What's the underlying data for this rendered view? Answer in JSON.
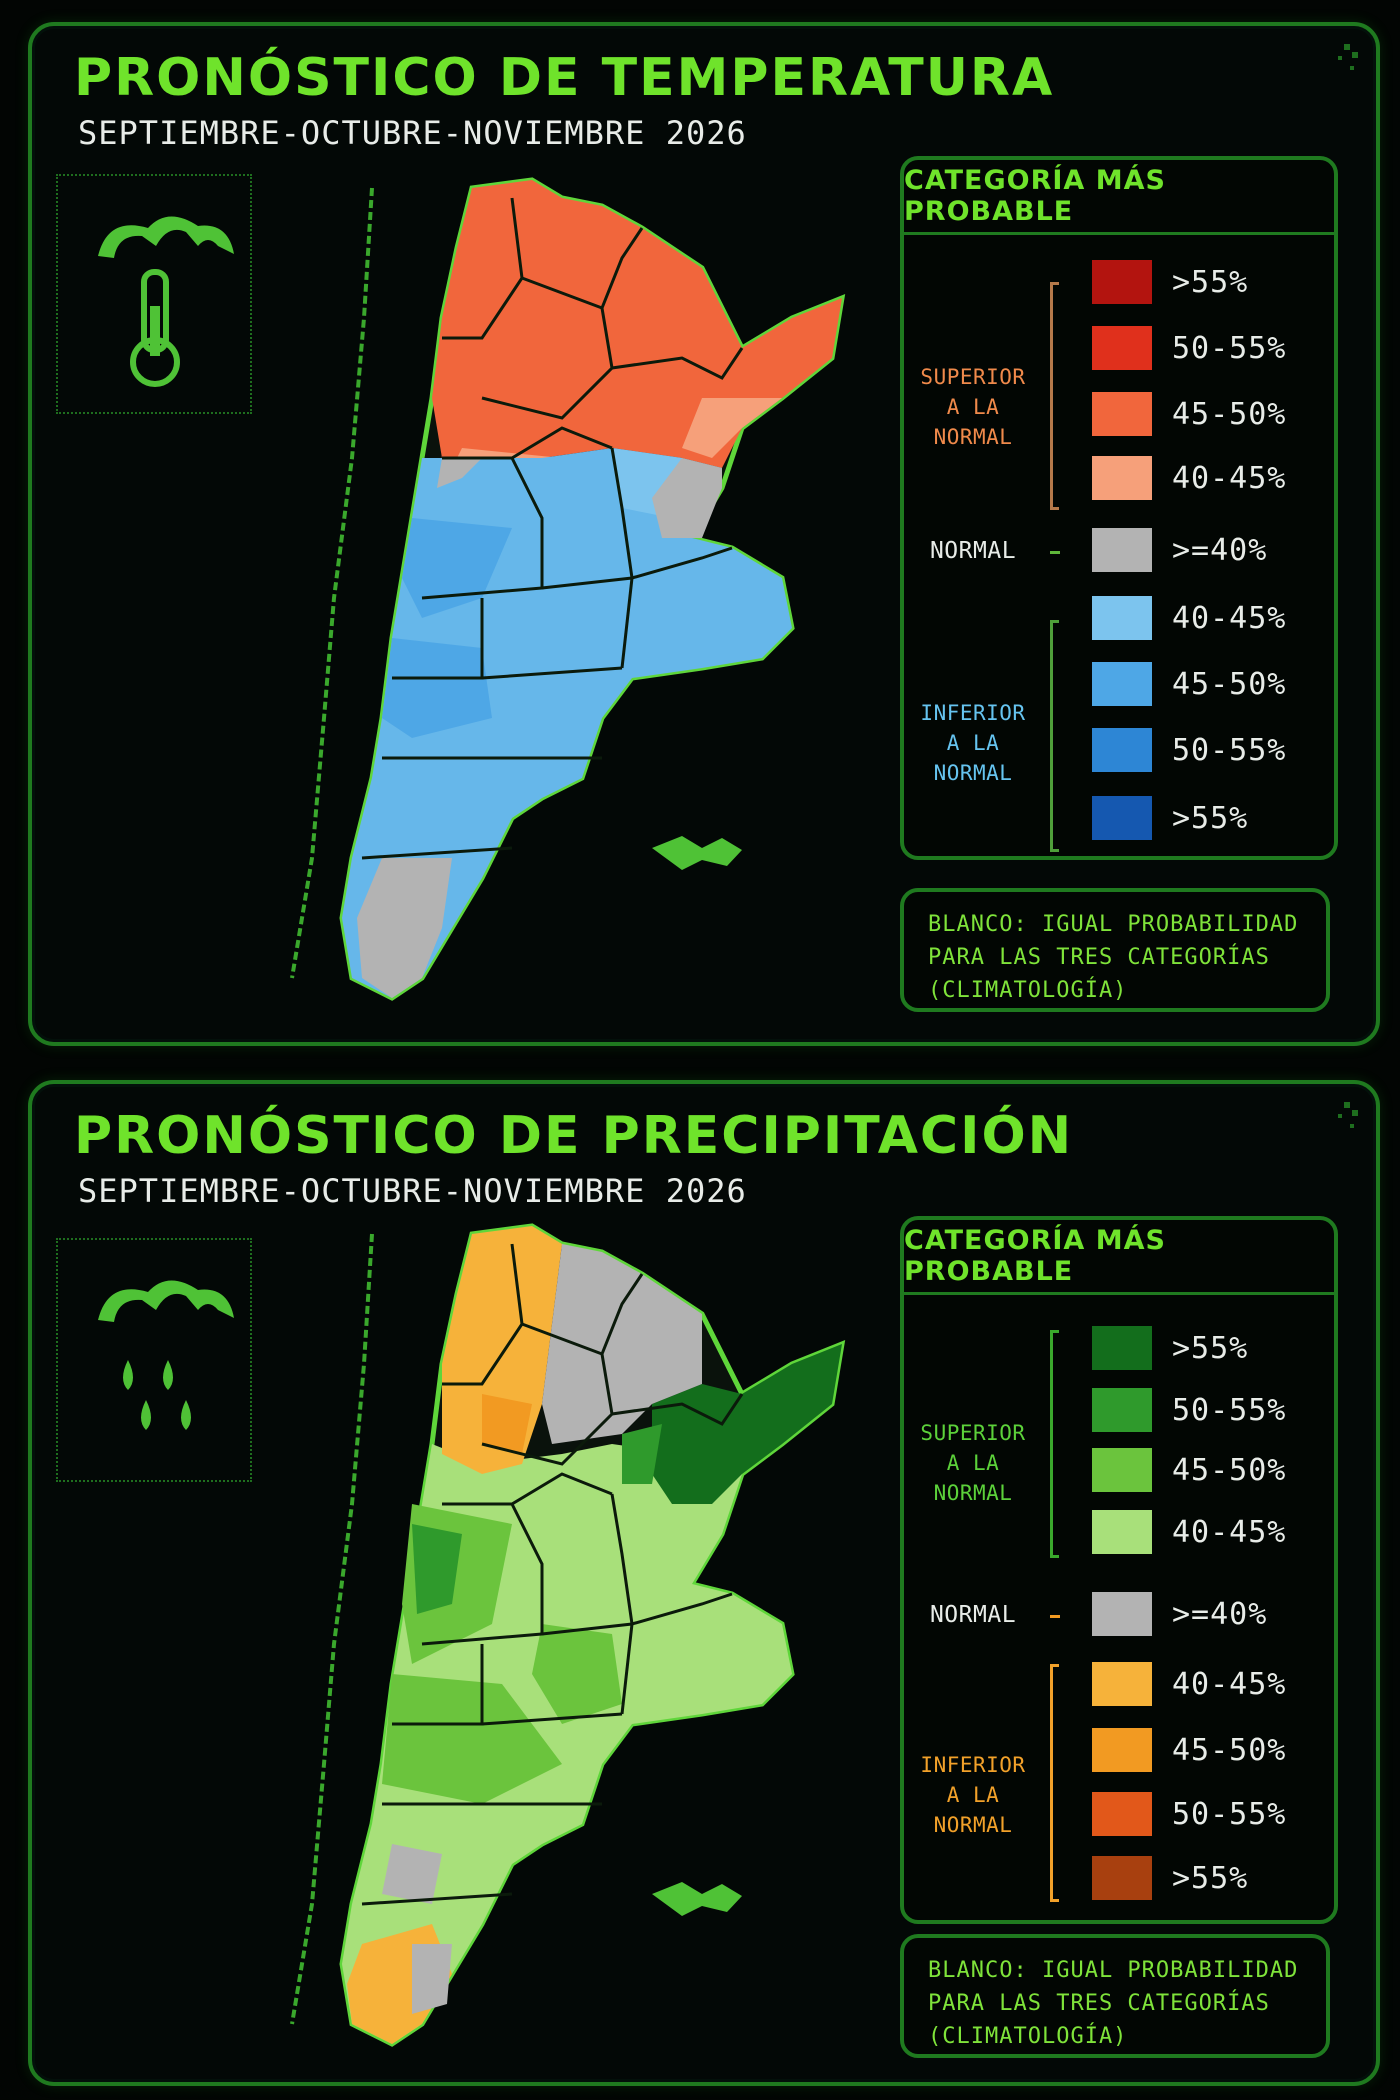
{
  "colors": {
    "accent": "#6fe32b",
    "frame": "#1f7a1f",
    "superior_label": "#f08a4b",
    "inferior_label": "#66c4f0",
    "precip_superior_label": "#5cd13a",
    "precip_inferior_label": "#f2a12a",
    "normal": "#b3b3b3"
  },
  "temperature": {
    "title": "PRONÓSTICO DE TEMPERATURA",
    "subtitle": "SEPTIEMBRE-OCTUBRE-NOVIEMBRE 2026",
    "icon": "thermometer-cloud-icon",
    "legend": {
      "header": "CATEGORÍA MÁS PROBABLE",
      "superior_label_line1": "SUPERIOR",
      "superior_label_line2": "A LA NORMAL",
      "normal_label": "NORMAL",
      "inferior_label_line1": "INFERIOR",
      "inferior_label_line2": "A LA NORMAL",
      "items": [
        {
          "label": ">55%",
          "color": "#b3140f"
        },
        {
          "label": "50-55%",
          "color": "#e0301c"
        },
        {
          "label": "45-50%",
          "color": "#f1663c"
        },
        {
          "label": "40-45%",
          "color": "#f6a07a"
        },
        {
          "label": ">=40%",
          "color": "#b3b3b3"
        },
        {
          "label": "40-45%",
          "color": "#7cc4ee"
        },
        {
          "label": "45-50%",
          "color": "#4ea7e6"
        },
        {
          "label": "50-55%",
          "color": "#2d86d5"
        },
        {
          "label": ">55%",
          "color": "#1558b0"
        }
      ]
    },
    "note": {
      "line1": "BLANCO: IGUAL PROBABILIDAD",
      "line2": "PARA LAS TRES CATEGORÍAS",
      "line3": "(CLIMATOLOGÍA)"
    }
  },
  "precipitation": {
    "title": "PRONÓSTICO DE PRECIPITACIÓN",
    "subtitle": "SEPTIEMBRE-OCTUBRE-NOVIEMBRE 2026",
    "icon": "rain-cloud-icon",
    "legend": {
      "header": "CATEGORÍA MÁS PROBABLE",
      "superior_label_line1": "SUPERIOR",
      "superior_label_line2": "A LA NORMAL",
      "normal_label": "NORMAL",
      "inferior_label_line1": "INFERIOR",
      "inferior_label_line2": "A LA NORMAL",
      "items": [
        {
          "label": ">55%",
          "color": "#136e1c"
        },
        {
          "label": "50-55%",
          "color": "#2f9a2c"
        },
        {
          "label": "45-50%",
          "color": "#6bc43d"
        },
        {
          "label": "40-45%",
          "color": "#a8e07a"
        },
        {
          "label": ">=40%",
          "color": "#b3b3b3"
        },
        {
          "label": "40-45%",
          "color": "#f6b23a"
        },
        {
          "label": "45-50%",
          "color": "#f29a22"
        },
        {
          "label": "50-55%",
          "color": "#e2581a"
        },
        {
          "label": ">55%",
          "color": "#a8400f"
        }
      ]
    },
    "note": {
      "line1": "BLANCO: IGUAL PROBABILIDAD",
      "line2": "PARA LAS TRES CATEGORÍAS",
      "line3": "(CLIMATOLOGÍA)"
    }
  }
}
